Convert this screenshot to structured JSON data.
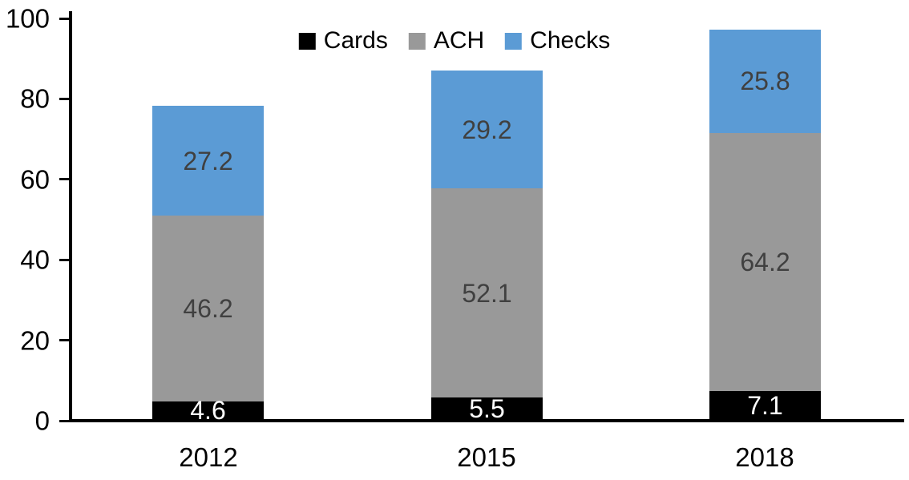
{
  "chart_data": {
    "type": "bar",
    "stacked": true,
    "title": "",
    "categories": [
      "2012",
      "2015",
      "2018"
    ],
    "series": [
      {
        "name": "Cards",
        "color": "#000000",
        "label_color": "#ffffff",
        "values": [
          4.6,
          5.5,
          7.1
        ]
      },
      {
        "name": "ACH",
        "color": "#999999",
        "label_color": "#404040",
        "values": [
          46.2,
          52.1,
          64.2
        ]
      },
      {
        "name": "Checks",
        "color": "#5b9bd5",
        "label_color": "#404040",
        "values": [
          27.2,
          29.2,
          25.8
        ]
      }
    ],
    "totals": [
      78.0,
      86.8,
      97.1
    ],
    "xlabel": "",
    "ylabel": "",
    "ylim": [
      0,
      100
    ],
    "yticks": [
      "0",
      "20",
      "40",
      "60",
      "80",
      "100"
    ],
    "grid": false,
    "legend_position": "top-center",
    "axis_color": "#000000",
    "tick_label_color": "#000000",
    "data_labels_shown": true
  }
}
